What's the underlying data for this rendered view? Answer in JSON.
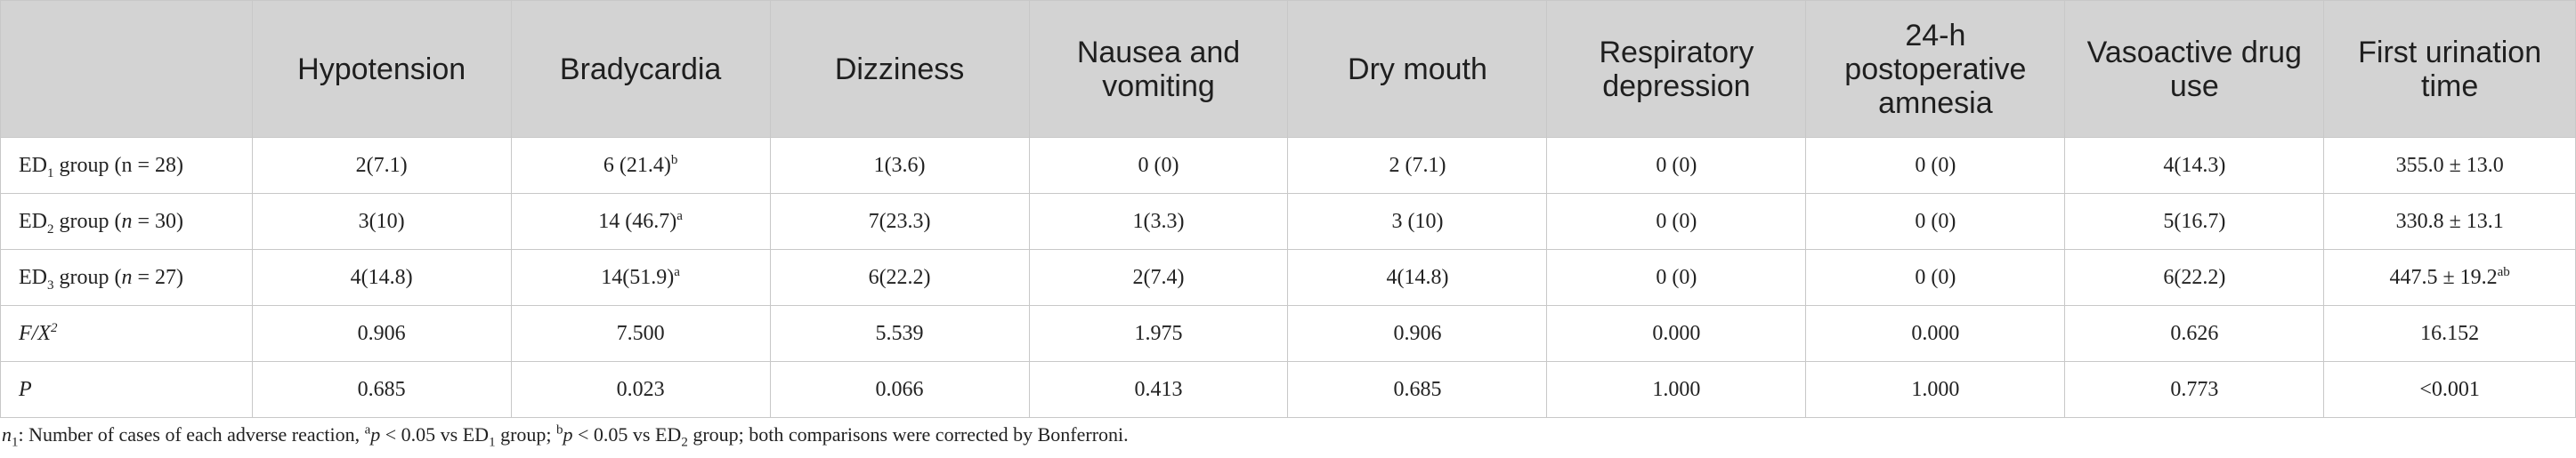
{
  "table": {
    "headers": [
      "",
      "Hypotension",
      "Bradycardia",
      "Dizziness",
      "Nausea and vomiting",
      "Dry mouth",
      "Respiratory depression",
      "24-h postoperative amnesia",
      "Vasoactive drug use",
      "First urination time"
    ],
    "rows": [
      {
        "label_prefix": "ED",
        "label_sub": "1",
        "label_suffix": " group (n = 28)",
        "cells": [
          "2(7.1)",
          "6 (21.4)",
          "1(3.6)",
          "0 (0)",
          "2 (7.1)",
          "0 (0)",
          "0 (0)",
          "4(14.3)",
          "355.0 ± 13.0"
        ],
        "bradycardia_sup": "b",
        "urination_sup": ""
      },
      {
        "label_prefix": "ED",
        "label_sub": "2",
        "label_mid": " group (",
        "label_n": "n",
        "label_end": " = 30)",
        "cells": [
          "3(10)",
          "14 (46.7)",
          "7(23.3)",
          "1(3.3)",
          "3 (10)",
          "0 (0)",
          "0 (0)",
          "5(16.7)",
          "330.8 ± 13.1"
        ],
        "bradycardia_sup": "a",
        "urination_sup": ""
      },
      {
        "label_prefix": "ED",
        "label_sub": "3",
        "label_mid": " group (",
        "label_n": "n",
        "label_end": " = 27)",
        "cells": [
          "4(14.8)",
          "14(51.9)",
          "6(22.2)",
          "2(7.4)",
          "4(14.8)",
          "0 (0)",
          "0 (0)",
          "6(22.2)",
          "447.5 ± 19.2"
        ],
        "bradycardia_sup": "a",
        "urination_sup": "ab"
      },
      {
        "label_main": "F/X",
        "label_sup": "2",
        "cells": [
          "0.906",
          "7.500",
          "5.539",
          "1.975",
          "0.906",
          "0.000",
          "0.000",
          "0.626",
          "16.152"
        ]
      },
      {
        "label_main": "P",
        "cells": [
          "0.685",
          "0.023",
          "0.066",
          "0.413",
          "0.685",
          "1.000",
          "1.000",
          "0.773",
          "<0.001"
        ]
      }
    ]
  },
  "footnote": {
    "n_prefix": "n",
    "n_sub": "1",
    "part1": ": Number of cases of each adverse reaction, ",
    "sup_a": "a",
    "p1": "p",
    "part2": " < 0.05 vs ED",
    "sub1": "1",
    "part3": " group; ",
    "sup_b": "b",
    "p2": "p",
    "part4": " < 0.05 vs ED",
    "sub2": "2",
    "part5": " group; both comparisons were corrected by Bonferroni."
  }
}
